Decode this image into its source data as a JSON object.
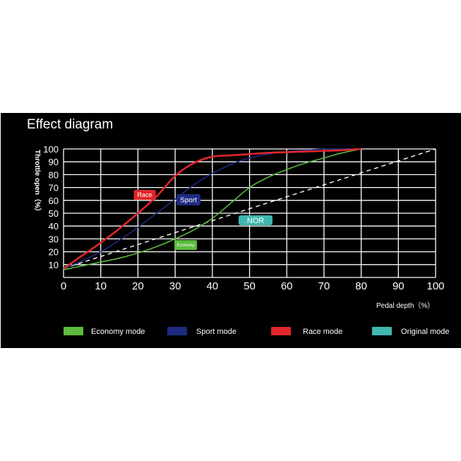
{
  "title": "Effect diagram",
  "chart_data": {
    "type": "line",
    "xlabel": "Pedal depth（%）",
    "ylabel": "Throttle open（%）",
    "xlim": [
      0,
      100
    ],
    "ylim": [
      0,
      100
    ],
    "xticks": [
      0,
      10,
      20,
      30,
      40,
      50,
      60,
      70,
      80,
      90,
      100
    ],
    "yticks": [
      10,
      20,
      30,
      40,
      50,
      60,
      70,
      80,
      90,
      100
    ],
    "grid": true,
    "legend_position": "bottom",
    "series": [
      {
        "name": "Economy mode",
        "color": "#5cba3c",
        "tag": "Economy",
        "x": [
          0,
          5,
          10,
          15,
          20,
          25,
          30,
          35,
          40,
          45,
          50,
          55,
          60,
          65,
          70,
          75,
          80
        ],
        "y": [
          6,
          9,
          12,
          15,
          19,
          24,
          30,
          37,
          46,
          58,
          70,
          78,
          84,
          89,
          93,
          97,
          100
        ]
      },
      {
        "name": "Sport mode",
        "color": "#1e2a80",
        "tag": "Sport",
        "x": [
          0,
          5,
          10,
          15,
          20,
          25,
          30,
          35,
          40,
          45,
          50,
          55,
          60,
          65,
          70,
          75,
          80
        ],
        "y": [
          7,
          13,
          20,
          29,
          39,
          50,
          61,
          72,
          81,
          88,
          93,
          96,
          98,
          99,
          100,
          100,
          100
        ]
      },
      {
        "name": "Race mode",
        "color": "#e0262b",
        "tag": "Race",
        "x": [
          0,
          5,
          10,
          15,
          20,
          25,
          30,
          35,
          40,
          45,
          50,
          55,
          60,
          65,
          70,
          75,
          80
        ],
        "y": [
          7,
          17,
          27,
          38,
          50,
          63,
          79,
          89,
          94,
          95,
          96,
          97,
          97.5,
          98,
          98.5,
          99,
          100
        ]
      },
      {
        "name": "Original mode",
        "color": "#3fb8b0",
        "tag": "NOR",
        "x": [
          0,
          100
        ],
        "y": [
          7,
          100
        ]
      }
    ]
  }
}
